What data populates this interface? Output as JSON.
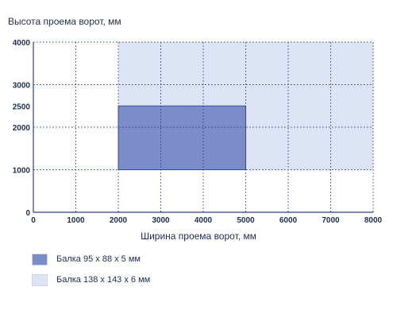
{
  "chart_data": {
    "type": "area",
    "ylabel": "Высота проема ворот, мм",
    "xlabel": "Ширина проема ворот, мм",
    "x_ticks": [
      0,
      1000,
      2000,
      3000,
      4000,
      5000,
      6000,
      7000,
      8000
    ],
    "y_ticks": [
      0,
      1000,
      2000,
      2500,
      3000,
      4000
    ],
    "xlim": [
      0,
      8000
    ],
    "ylim": [
      0,
      4000
    ],
    "grid": true,
    "legend_position": "bottom-left",
    "series": [
      {
        "name": "Балка 138 х 143 х 6 мм",
        "x_range": [
          2000,
          8000
        ],
        "y_range": [
          1000,
          4000
        ],
        "color": "#dde4f6"
      },
      {
        "name": "Балка 95 х 88 х 5 мм",
        "x_range": [
          2000,
          5000
        ],
        "y_range": [
          1000,
          2500
        ],
        "color": "#7a8dc8"
      }
    ]
  },
  "legend": [
    {
      "label": "Балка 95 х 88 х 5 мм",
      "color": "#7a8dc8"
    },
    {
      "label": "Балка 138 х 143 х 6 мм",
      "color": "#dde4f6"
    }
  ],
  "colors": {
    "grid": "#2e3f8a",
    "axis_text": "#1f2d4f"
  }
}
